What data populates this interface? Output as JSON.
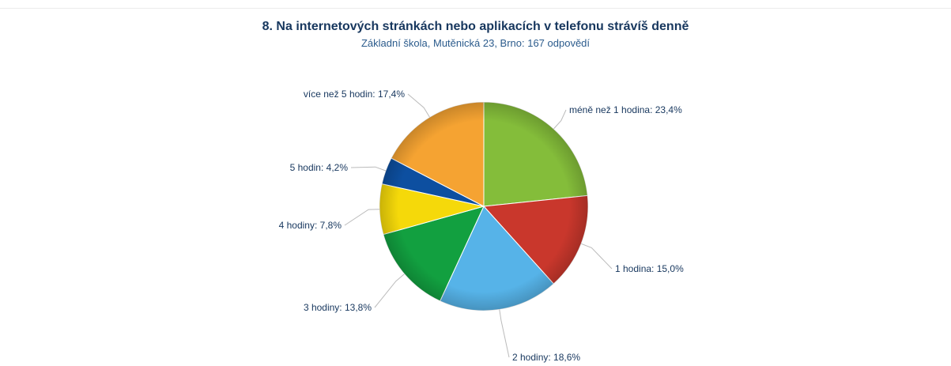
{
  "chart_data": {
    "type": "pie",
    "title": "8. Na internetových stránkách nebo aplikacích v telefonu strávíš denně",
    "subtitle": "Základní škola, Mutěnická 23, Brno: 167 odpovědí",
    "slices": [
      {
        "label": "méně než 1 hodina",
        "value": 23.4,
        "display": "méně než 1 hodina: 23,4%",
        "color": "#84bd3a"
      },
      {
        "label": "1 hodina",
        "value": 15.0,
        "display": "1 hodina: 15,0%",
        "color": "#c9372c"
      },
      {
        "label": "2 hodiny",
        "value": 18.6,
        "display": "2 hodiny: 18,6%",
        "color": "#56b3e8"
      },
      {
        "label": "3 hodiny",
        "value": 13.8,
        "display": "3 hodiny: 13,8%",
        "color": "#12a040"
      },
      {
        "label": "4 hodiny",
        "value": 7.8,
        "display": "4 hodiny: 7,8%",
        "color": "#f5d90a"
      },
      {
        "label": "5 hodin",
        "value": 4.2,
        "display": "5 hodin: 4,2%",
        "color": "#0d4fa0"
      },
      {
        "label": "více než 5 hodin",
        "value": 17.4,
        "display": "více než 5 hodin: 17,4%",
        "color": "#f5a332"
      }
    ]
  }
}
